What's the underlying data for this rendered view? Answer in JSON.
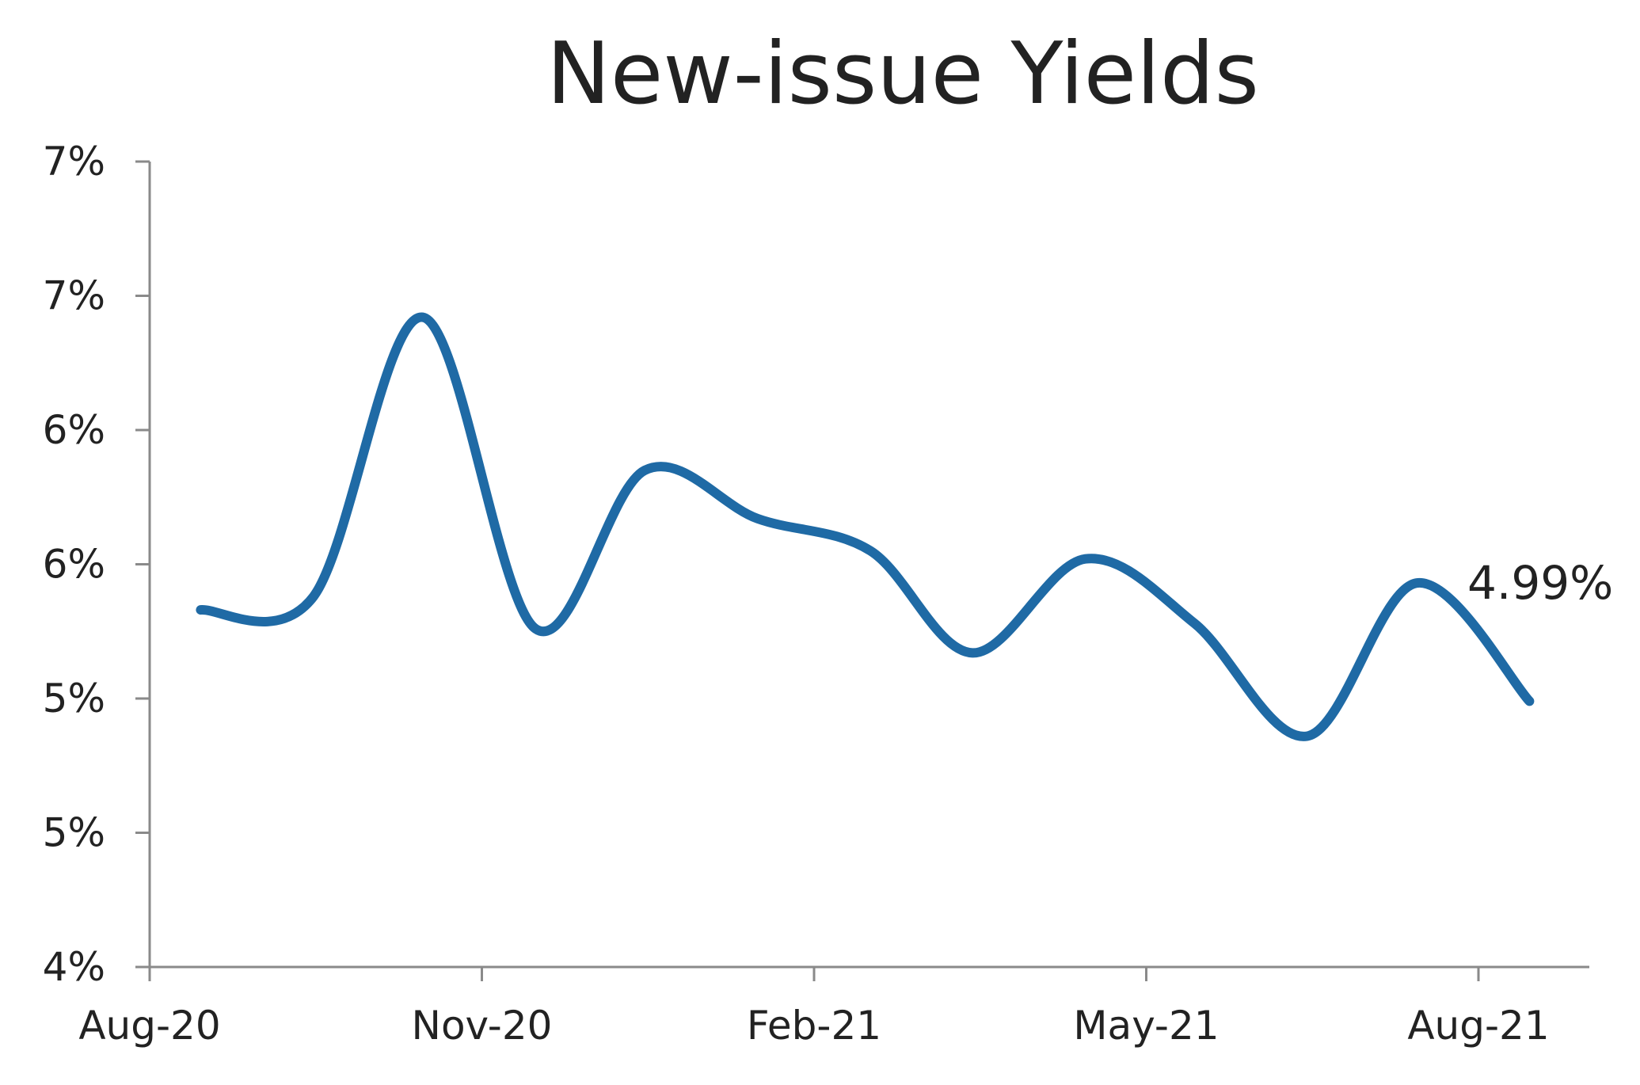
{
  "chart_data": {
    "type": "line",
    "title": "New-issue Yields",
    "xlabel": "",
    "ylabel": "",
    "x": [
      "2020-08-15",
      "2020-09-15",
      "2020-10-15",
      "2020-11-15",
      "2020-12-15",
      "2021-01-15",
      "2021-02-15",
      "2021-03-15",
      "2021-04-15",
      "2021-05-15",
      "2021-06-15",
      "2021-07-15",
      "2021-08-15"
    ],
    "series": [
      {
        "values": [
          5.33,
          5.38,
          6.42,
          5.26,
          5.85,
          5.67,
          5.55,
          5.17,
          5.52,
          5.28,
          4.86,
          5.43,
          4.99
        ]
      }
    ],
    "ylim": [
      4.0,
      7.0
    ],
    "ytick_values": [
      4.0,
      4.5,
      5.0,
      5.5,
      6.0,
      6.5,
      7.0
    ],
    "ytick_labels": [
      "4%",
      "5%",
      "5%",
      "6%",
      "6%",
      "7%",
      "7%"
    ],
    "xtick_labels": [
      "Aug-20",
      "Nov-20",
      "Feb-21",
      "May-21",
      "Aug-21"
    ],
    "end_label": "4.99%",
    "grid": false,
    "legend": "none",
    "colors": {
      "series": "#1f6aa5",
      "axis": "#8a8a8a",
      "text": "#222222"
    }
  }
}
